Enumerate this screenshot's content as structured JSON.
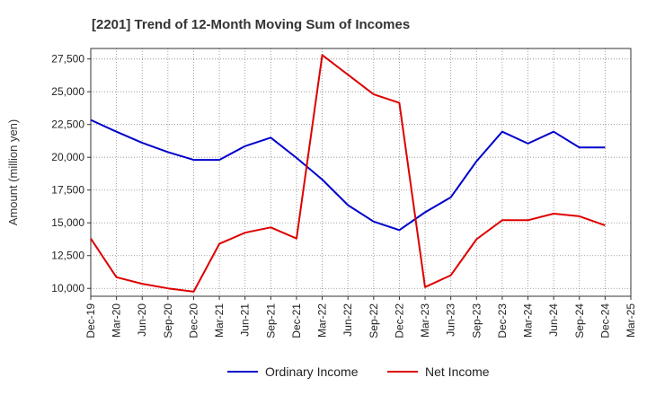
{
  "chart_data": {
    "type": "line",
    "title": "[2201]  Trend of 12-Month Moving Sum of Incomes",
    "xlabel": "",
    "ylabel": "Amount (million yen)",
    "categories": [
      "Dec-19",
      "Mar-20",
      "Jun-20",
      "Sep-20",
      "Dec-20",
      "Mar-21",
      "Jun-21",
      "Sep-21",
      "Dec-21",
      "Mar-22",
      "Jun-22",
      "Sep-22",
      "Dec-22",
      "Mar-23",
      "Jun-23",
      "Sep-23",
      "Dec-23",
      "Mar-24",
      "Jun-24",
      "Sep-24",
      "Dec-24",
      "Mar-25"
    ],
    "ylim": [
      9400,
      28300
    ],
    "yticks": [
      10000,
      12500,
      15000,
      17500,
      20000,
      22500,
      25000,
      27500
    ],
    "ytick_labels": [
      "10,000",
      "12,500",
      "15,000",
      "17,500",
      "20,000",
      "22,500",
      "25,000",
      "27,500"
    ],
    "grid": true,
    "legend_position": "bottom",
    "series": [
      {
        "name": "Ordinary Income",
        "color": "#0000cc",
        "values": [
          22850,
          21950,
          21100,
          20400,
          19800,
          19800,
          20850,
          21500,
          19950,
          18300,
          16350,
          15100,
          14450,
          15800,
          16950,
          19700,
          21950,
          21050,
          21950,
          20750,
          20750,
          null
        ]
      },
      {
        "name": "Net Income",
        "color": "#dd0000",
        "values": [
          13800,
          10850,
          10350,
          10000,
          9750,
          13400,
          14250,
          14650,
          13800,
          27800,
          26300,
          24800,
          24150,
          10100,
          11000,
          13750,
          15200,
          15200,
          15700,
          15500,
          14800,
          null
        ]
      }
    ]
  }
}
